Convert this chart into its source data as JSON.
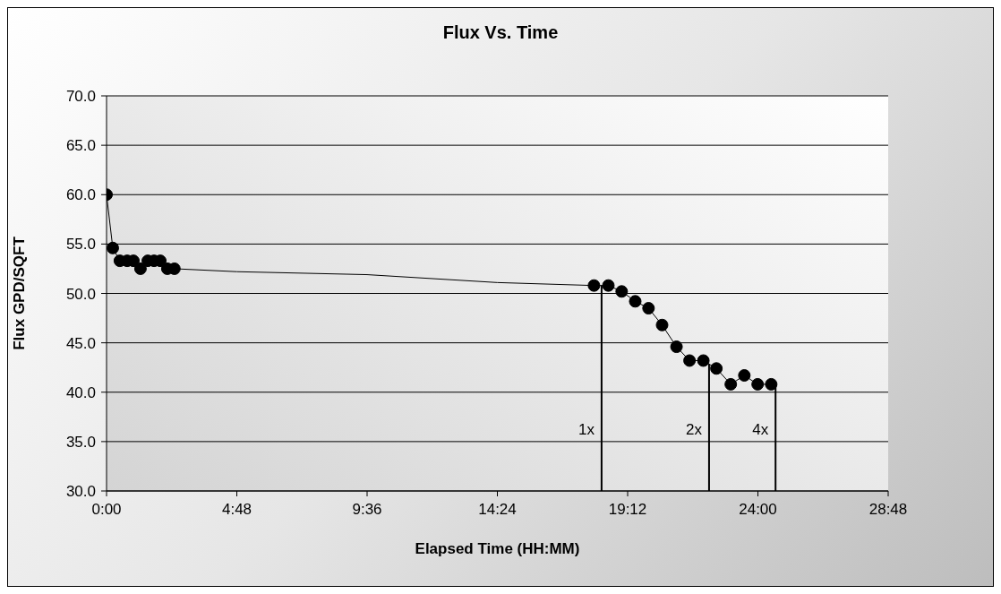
{
  "chart_data": {
    "type": "line",
    "title": "Flux Vs. Time",
    "xlabel": "Elapsed Time (HH:MM)",
    "ylabel": "Flux GPD/SQFT",
    "xlim": [
      0,
      28.8
    ],
    "xticks": [
      {
        "value": 0,
        "label": "0:00"
      },
      {
        "value": 4.8,
        "label": "4:48"
      },
      {
        "value": 9.6,
        "label": "9:36"
      },
      {
        "value": 14.4,
        "label": "14:24"
      },
      {
        "value": 19.2,
        "label": "19:12"
      },
      {
        "value": 24,
        "label": "24:00"
      },
      {
        "value": 28.8,
        "label": "28:48"
      }
    ],
    "ylim": [
      30,
      70
    ],
    "yticks": [
      {
        "value": 30,
        "label": "30.0"
      },
      {
        "value": 35,
        "label": "35.0"
      },
      {
        "value": 40,
        "label": "40.0"
      },
      {
        "value": 45,
        "label": "45.0"
      },
      {
        "value": 50,
        "label": "50.0"
      },
      {
        "value": 55,
        "label": "55.0"
      },
      {
        "value": 60,
        "label": "60.0"
      },
      {
        "value": 65,
        "label": "65.0"
      },
      {
        "value": 70,
        "label": "70.0"
      }
    ],
    "grid": "y",
    "series": [
      {
        "color": "#000000",
        "marker": "circle",
        "x": [
          0,
          0.23,
          0.49,
          0.76,
          0.99,
          1.25,
          1.52,
          1.75,
          1.98,
          2.24,
          2.5
        ],
        "values": [
          60.0,
          54.6,
          53.3,
          53.3,
          53.3,
          52.5,
          53.3,
          53.3,
          53.3,
          52.5,
          52.5
        ]
      },
      {
        "color": "#000000",
        "marker": "none",
        "x": [
          2.5,
          4.8,
          9.6,
          14.4,
          17.96
        ],
        "values": [
          52.5,
          52.2,
          51.9,
          51.1,
          50.8
        ]
      },
      {
        "color": "#000000",
        "marker": "circle",
        "x": [
          17.96,
          18.49,
          18.98,
          19.48,
          19.97,
          20.47,
          21.0,
          21.48,
          21.99,
          22.47,
          23.0,
          23.5,
          23.99,
          24.49
        ],
        "values": [
          50.8,
          50.8,
          50.2,
          49.2,
          48.5,
          46.8,
          44.6,
          43.2,
          43.2,
          42.4,
          40.8,
          41.7,
          40.8,
          40.8
        ]
      }
    ],
    "ref_lines": [
      {
        "axis": "x",
        "value": 18.24,
        "label": "1x"
      },
      {
        "axis": "x",
        "value": 22.2,
        "label": "2x"
      },
      {
        "axis": "x",
        "value": 24.65,
        "label": "4x"
      }
    ]
  }
}
